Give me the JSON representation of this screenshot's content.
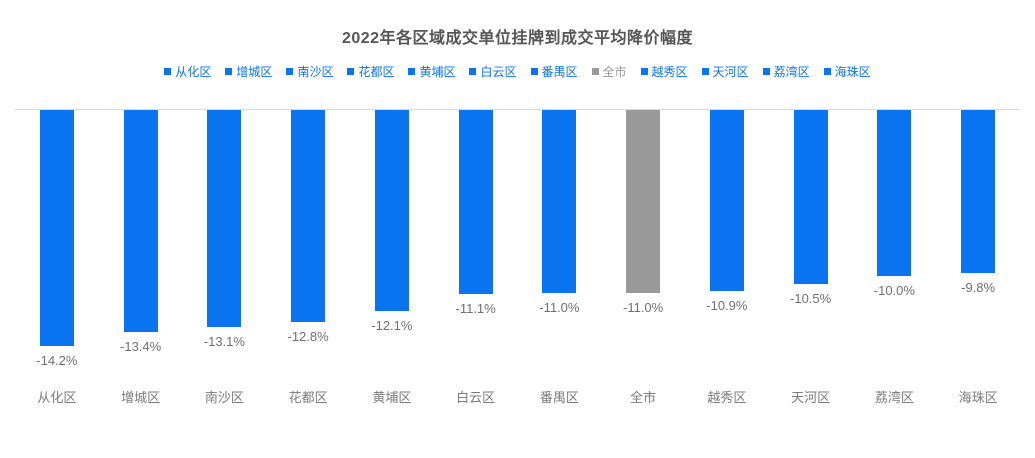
{
  "chart_data": {
    "type": "bar",
    "title": "2022年各区域成交单位挂牌到成交平均降价幅度",
    "categories": [
      "从化区",
      "增城区",
      "南沙区",
      "花都区",
      "黄埔区",
      "白云区",
      "番禺区",
      "全市",
      "越秀区",
      "天河区",
      "荔湾区",
      "海珠区"
    ],
    "values": [
      -14.2,
      -13.4,
      -13.1,
      -12.8,
      -12.1,
      -11.1,
      -11.0,
      -11.0,
      -10.9,
      -10.5,
      -10.0,
      -9.8
    ],
    "value_labels": [
      "-14.2%",
      "-13.4%",
      "-13.1%",
      "-12.8%",
      "-12.1%",
      "-11.1%",
      "-11.0%",
      "-11.0%",
      "-10.9%",
      "-10.5%",
      "-10.0%",
      "-9.8%"
    ],
    "bar_colors": [
      "#0b74f0",
      "#0b74f0",
      "#0b74f0",
      "#0b74f0",
      "#0b74f0",
      "#0b74f0",
      "#0b74f0",
      "#999999",
      "#0b74f0",
      "#0b74f0",
      "#0b74f0",
      "#0b74f0"
    ],
    "xlabel": "",
    "ylabel": "",
    "ylim": [
      -15,
      0
    ],
    "grid": false,
    "legend_position": "top",
    "colors": {
      "series_blue": "#0b74f0",
      "series_gray": "#999999",
      "axis_line": "#d9d9d9",
      "title_text": "#555555",
      "value_label_text": "#6f6f6f",
      "axis_label_text": "#7a7a7a"
    }
  }
}
